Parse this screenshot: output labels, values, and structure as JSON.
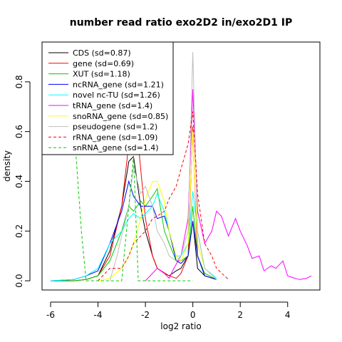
{
  "chart_data": {
    "type": "line",
    "title": "number read ratio exo2D2 in/exo2D1 IP",
    "xlabel": "log2 ratio",
    "ylabel": "density",
    "xlim": [
      -6.36,
      5.36
    ],
    "ylim": [
      -0.037,
      0.96
    ],
    "xticks": [
      -6,
      -4,
      -2,
      0,
      2,
      4
    ],
    "xtick_labels": [
      "-6",
      "-4",
      "-2",
      "0",
      "2",
      "4"
    ],
    "yticks": [
      0.0,
      0.2,
      0.4,
      0.6,
      0.8
    ],
    "ytick_labels": [
      "0.0",
      "0.2",
      "0.4",
      "0.6",
      "0.8"
    ],
    "grid": false,
    "legend_position": "top-left",
    "series": [
      {
        "name": "CDS (sd=0.87)",
        "color": "#000000",
        "dash": "solid",
        "x": [
          -6,
          -5,
          -4.5,
          -4,
          -3.5,
          -3,
          -2.7,
          -2.5,
          -2.2,
          -2,
          -1.7,
          -1.5,
          -1.2,
          -1,
          -0.7,
          -0.5,
          -0.2,
          0,
          0.2,
          0.5,
          1
        ],
        "y": [
          0,
          0,
          0.005,
          0.02,
          0.12,
          0.3,
          0.48,
          0.5,
          0.3,
          0.2,
          0.1,
          0.05,
          0.03,
          0.02,
          0.04,
          0.05,
          0.1,
          0.24,
          0.05,
          0.02,
          0.005
        ]
      },
      {
        "name": "gene (sd=0.69)",
        "color": "#ff0000",
        "dash": "solid",
        "x": [
          -6,
          -5,
          -4.5,
          -4,
          -3.5,
          -3,
          -2.7,
          -2.5,
          -2.3,
          -2,
          -1.7,
          -1.5,
          -1,
          -0.7,
          -0.5,
          -0.2,
          0,
          0.2,
          0.5,
          1
        ],
        "y": [
          0,
          0,
          0.005,
          0.02,
          0.1,
          0.3,
          0.55,
          0.6,
          0.55,
          0.25,
          0.1,
          0.05,
          0.02,
          0.01,
          0.03,
          0.1,
          0.62,
          0.1,
          0.02,
          0.005
        ]
      },
      {
        "name": "XUT (sd=1.18)",
        "color": "#00cd00",
        "dash": "solid",
        "x": [
          -6,
          -5,
          -4.5,
          -4,
          -3.5,
          -3,
          -2.7,
          -2.5,
          -2.2,
          -2,
          -1.7,
          -1.5,
          -1.2,
          -1,
          -0.7,
          -0.5,
          -0.2,
          0,
          0.2,
          0.5,
          1
        ],
        "y": [
          0,
          0,
          0.005,
          0.02,
          0.08,
          0.2,
          0.3,
          0.28,
          0.32,
          0.3,
          0.34,
          0.37,
          0.2,
          0.15,
          0.08,
          0.08,
          0.1,
          0.3,
          0.1,
          0.03,
          0.005
        ]
      },
      {
        "name": "ncRNA_gene (sd=1.21)",
        "color": "#0000ff",
        "dash": "solid",
        "x": [
          -6,
          -5,
          -4.5,
          -4,
          -3.5,
          -3,
          -2.7,
          -2.5,
          -2.2,
          -2,
          -1.7,
          -1.5,
          -1.2,
          -1,
          -0.7,
          -0.5,
          -0.2,
          0,
          0.2,
          0.5,
          1
        ],
        "y": [
          0,
          0.005,
          0.02,
          0.04,
          0.15,
          0.28,
          0.4,
          0.34,
          0.3,
          0.3,
          0.3,
          0.25,
          0.26,
          0.2,
          0.08,
          0.07,
          0.1,
          0.24,
          0.1,
          0.02,
          0.005
        ]
      },
      {
        "name": "novel nc-TU (sd=1.26)",
        "color": "#00ffff",
        "dash": "solid",
        "x": [
          -6,
          -5,
          -4.5,
          -4,
          -3.5,
          -3,
          -2.7,
          -2.5,
          -2.2,
          -2,
          -1.7,
          -1.5,
          -1.2,
          -1,
          -0.7,
          -0.5,
          -0.2,
          0,
          0.2,
          0.5,
          1
        ],
        "y": [
          0,
          0.005,
          0.02,
          0.05,
          0.15,
          0.2,
          0.25,
          0.27,
          0.25,
          0.27,
          0.3,
          0.35,
          0.28,
          0.2,
          0.1,
          0.1,
          0.15,
          0.36,
          0.2,
          0.05,
          0.01
        ]
      },
      {
        "name": "tRNA_gene (sd=1.4)",
        "color": "#ff00ff",
        "dash": "solid",
        "x": [
          -2,
          -1.8,
          -1.5,
          -1.2,
          -1,
          -0.8,
          -0.5,
          -0.2,
          0,
          0.2,
          0.5,
          0.8,
          1,
          1.2,
          1.5,
          1.8,
          2,
          2.3,
          2.5,
          2.8,
          3,
          3.3,
          3.5,
          3.8,
          4,
          4.3,
          4.5,
          4.8,
          5
        ],
        "y": [
          0,
          0.02,
          0.05,
          0.03,
          0.01,
          0.05,
          0.1,
          0.25,
          0.77,
          0.28,
          0.15,
          0.2,
          0.28,
          0.26,
          0.18,
          0.25,
          0.2,
          0.14,
          0.09,
          0.1,
          0.04,
          0.06,
          0.05,
          0.08,
          0.02,
          0.01,
          0.005,
          0.01,
          0.02
        ]
      },
      {
        "name": "snoRNA_gene (sd=0.85)",
        "color": "#ffff00",
        "dash": "solid",
        "x": [
          -4,
          -3.5,
          -3,
          -2.7,
          -2.5,
          -2.2,
          -2,
          -1.7,
          -1.5,
          -1.2,
          -1,
          -0.7,
          -0.5,
          -0.2,
          0,
          0.2,
          0.5,
          1
        ],
        "y": [
          0,
          0.01,
          0.05,
          0.1,
          0.15,
          0.25,
          0.33,
          0.4,
          0.4,
          0.32,
          0.2,
          0.1,
          0.08,
          0.15,
          0.6,
          0.15,
          0.05,
          0.005
        ]
      },
      {
        "name": "pseudogene (sd=1.2)",
        "color": "#bebebe",
        "dash": "solid",
        "x": [
          -3.5,
          -3.2,
          -3,
          -2.7,
          -2.5,
          -2.2,
          -2,
          -1.7,
          -1.5,
          -1.2,
          -1,
          -0.7,
          -0.5,
          -0.2,
          0,
          0.2,
          0.5,
          1
        ],
        "y": [
          0,
          0.1,
          0.18,
          0.3,
          0.46,
          0.35,
          0.38,
          0.3,
          0.2,
          0.15,
          0.1,
          0.08,
          0.1,
          0.2,
          0.92,
          0.2,
          0.05,
          0.005
        ]
      },
      {
        "name": "rRNA_gene (sd=1.09)",
        "color": "#ff0000",
        "dash": "dashed",
        "x": [
          -4,
          -3.5,
          -3,
          -2.7,
          -2.5,
          -2.2,
          -2,
          -1.7,
          -1.5,
          -1.2,
          -1,
          -0.7,
          -0.5,
          -0.2,
          0,
          0.2,
          0.5,
          0.8,
          1,
          1.5
        ],
        "y": [
          0,
          0.05,
          0.05,
          0.1,
          0.15,
          0.18,
          0.2,
          0.25,
          0.26,
          0.28,
          0.33,
          0.38,
          0.45,
          0.55,
          0.68,
          0.35,
          0.15,
          0.1,
          0.05,
          0.005
        ]
      },
      {
        "name": "snRNA_gene (sd=1.4)",
        "color": "#00cd00",
        "dash": "dashed",
        "x": [
          -5.2,
          -5,
          -4.7,
          -4.5,
          -4.3,
          -3.5,
          -3,
          -2.7,
          -2.5,
          -2.3,
          -2,
          -1.5,
          -1,
          -0.5,
          0
        ],
        "y": [
          0.9,
          0.6,
          0.2,
          0,
          0,
          0,
          0,
          0.3,
          0.5,
          0,
          0,
          0,
          0,
          0,
          0
        ]
      }
    ]
  }
}
